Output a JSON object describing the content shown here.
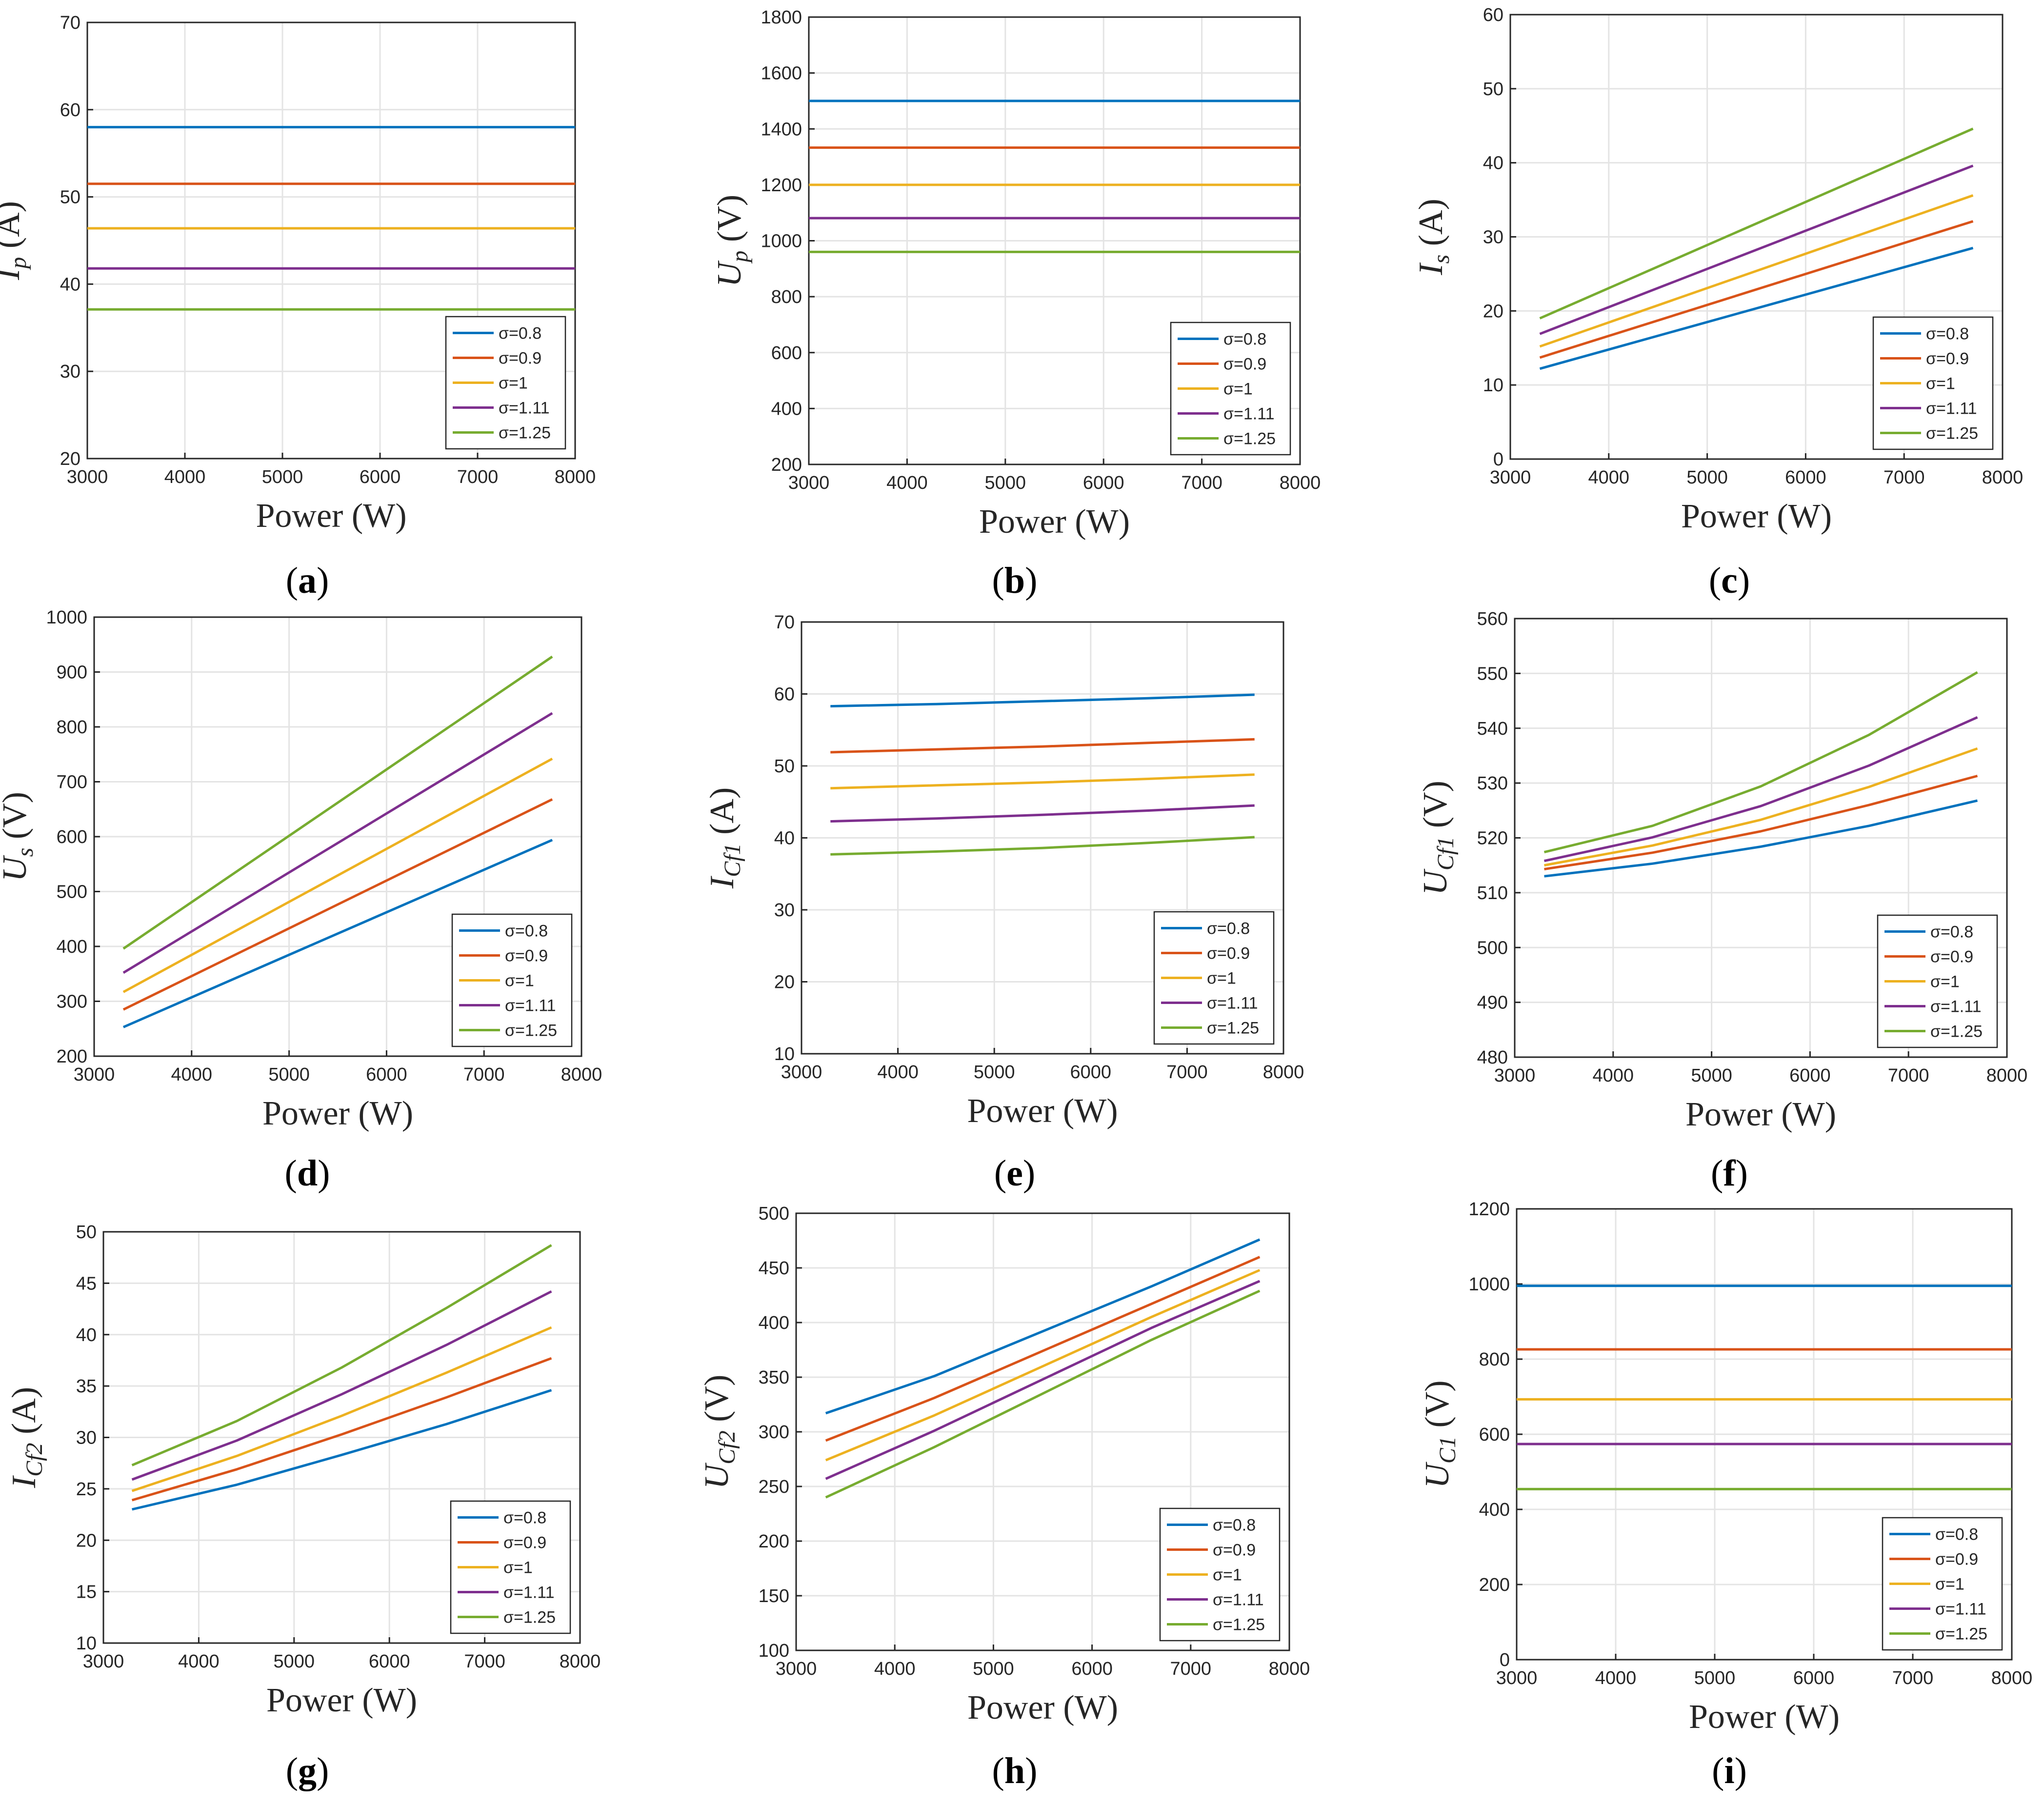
{
  "figure": {
    "legend_labels": [
      "σ=0.8",
      "σ=0.9",
      "σ=1",
      "σ=1.11",
      "σ=1.25"
    ],
    "series_colors": [
      "#0072BD",
      "#D95319",
      "#EDB120",
      "#7E2F8E",
      "#77AC30"
    ]
  },
  "chart_data": [
    {
      "id": "a",
      "type": "line",
      "caption": "a",
      "ylabel_main": "I",
      "ylabel_sub": "p",
      "ylabel_unit": " (A)",
      "xlabel": "Power (W)",
      "xlim": [
        3000,
        8000
      ],
      "ylim": [
        20,
        70
      ],
      "xticks": [
        3000,
        4000,
        5000,
        6000,
        7000,
        8000
      ],
      "yticks": [
        20,
        30,
        40,
        50,
        60,
        70
      ],
      "x": [
        3000,
        8000
      ],
      "series": [
        {
          "name": "σ=0.8",
          "values": [
            58,
            58
          ]
        },
        {
          "name": "σ=0.9",
          "values": [
            51.5,
            51.5
          ]
        },
        {
          "name": "σ=1",
          "values": [
            46.4,
            46.4
          ]
        },
        {
          "name": "σ=1.11",
          "values": [
            41.8,
            41.8
          ]
        },
        {
          "name": "σ=1.25",
          "values": [
            37.1,
            37.1
          ]
        }
      ],
      "legend": "bottom-right",
      "grid": true
    },
    {
      "id": "b",
      "type": "line",
      "caption": "b",
      "ylabel_main": "U",
      "ylabel_sub": "p",
      "ylabel_unit": " (V)",
      "xlabel": "Power (W)",
      "xlim": [
        3000,
        8000
      ],
      "ylim": [
        200,
        1800
      ],
      "xticks": [
        3000,
        4000,
        5000,
        6000,
        7000,
        8000
      ],
      "yticks": [
        200,
        400,
        600,
        800,
        1000,
        1200,
        1400,
        1600,
        1800
      ],
      "x": [
        3000,
        8000
      ],
      "series": [
        {
          "name": "σ=0.8",
          "values": [
            1500,
            1500
          ]
        },
        {
          "name": "σ=0.9",
          "values": [
            1333,
            1333
          ]
        },
        {
          "name": "σ=1",
          "values": [
            1200,
            1200
          ]
        },
        {
          "name": "σ=1.11",
          "values": [
            1081,
            1081
          ]
        },
        {
          "name": "σ=1.25",
          "values": [
            960,
            960
          ]
        }
      ],
      "legend": "bottom-right",
      "grid": true
    },
    {
      "id": "c",
      "type": "line",
      "caption": "c",
      "ylabel_main": "I",
      "ylabel_sub": "s",
      "ylabel_unit": " (A)",
      "xlabel": "Power (W)",
      "xlim": [
        3000,
        8000
      ],
      "ylim": [
        0,
        60
      ],
      "xticks": [
        3000,
        4000,
        5000,
        6000,
        7000,
        8000
      ],
      "yticks": [
        0,
        10,
        20,
        30,
        40,
        50,
        60
      ],
      "x": [
        3300,
        7700
      ],
      "series": [
        {
          "name": "σ=0.8",
          "values": [
            12.2,
            28.5
          ]
        },
        {
          "name": "σ=0.9",
          "values": [
            13.7,
            32.1
          ]
        },
        {
          "name": "σ=1",
          "values": [
            15.2,
            35.6
          ]
        },
        {
          "name": "σ=1.11",
          "values": [
            16.9,
            39.6
          ]
        },
        {
          "name": "σ=1.25",
          "values": [
            19.0,
            44.6
          ]
        }
      ],
      "legend": "bottom-right",
      "grid": true
    },
    {
      "id": "d",
      "type": "line",
      "caption": "d",
      "ylabel_main": "U",
      "ylabel_sub": "s",
      "ylabel_unit": " (V)",
      "xlabel": "Power (W)",
      "xlim": [
        3000,
        8000
      ],
      "ylim": [
        200,
        1000
      ],
      "xticks": [
        3000,
        4000,
        5000,
        6000,
        7000,
        8000
      ],
      "yticks": [
        200,
        300,
        400,
        500,
        600,
        700,
        800,
        900,
        1000
      ],
      "x": [
        3300,
        7700
      ],
      "series": [
        {
          "name": "σ=0.8",
          "values": [
            253,
            594
          ]
        },
        {
          "name": "σ=0.9",
          "values": [
            285,
            668
          ]
        },
        {
          "name": "σ=1",
          "values": [
            317,
            742
          ]
        },
        {
          "name": "σ=1.11",
          "values": [
            352,
            825
          ]
        },
        {
          "name": "σ=1.25",
          "values": [
            396,
            928
          ]
        }
      ],
      "legend": "bottom-right",
      "grid": true
    },
    {
      "id": "e",
      "type": "line",
      "caption": "e",
      "ylabel_main": "I",
      "ylabel_sub": "Cf1",
      "ylabel_unit": " (A)",
      "xlabel": "Power (W)",
      "xlim": [
        3000,
        8000
      ],
      "ylim": [
        10,
        70
      ],
      "xticks": [
        3000,
        4000,
        5000,
        6000,
        7000,
        8000
      ],
      "yticks": [
        10,
        20,
        30,
        40,
        50,
        60,
        70
      ],
      "x": [
        3300,
        4400,
        5500,
        6600,
        7700
      ],
      "series": [
        {
          "name": "σ=0.8",
          "values": [
            58.3,
            58.6,
            59.0,
            59.4,
            59.9
          ]
        },
        {
          "name": "σ=0.9",
          "values": [
            51.9,
            52.3,
            52.7,
            53.2,
            53.7
          ]
        },
        {
          "name": "σ=1",
          "values": [
            46.9,
            47.3,
            47.7,
            48.2,
            48.8
          ]
        },
        {
          "name": "σ=1.11",
          "values": [
            42.3,
            42.7,
            43.2,
            43.8,
            44.5
          ]
        },
        {
          "name": "σ=1.25",
          "values": [
            37.7,
            38.1,
            38.6,
            39.3,
            40.1
          ]
        }
      ],
      "legend": "bottom-right",
      "grid": true
    },
    {
      "id": "f",
      "type": "line",
      "caption": "f",
      "ylabel_main": "U",
      "ylabel_sub": "Cf1",
      "ylabel_unit": " (V)",
      "xlabel": "Power (W)",
      "xlim": [
        3000,
        8000
      ],
      "ylim": [
        480,
        560
      ],
      "xticks": [
        3000,
        4000,
        5000,
        6000,
        7000,
        8000
      ],
      "yticks": [
        480,
        490,
        500,
        510,
        520,
        530,
        540,
        550,
        560
      ],
      "x": [
        3300,
        4400,
        5500,
        6600,
        7700
      ],
      "series": [
        {
          "name": "σ=0.8",
          "values": [
            513.0,
            515.3,
            518.4,
            522.2,
            526.8
          ]
        },
        {
          "name": "σ=0.9",
          "values": [
            514.3,
            517.3,
            521.2,
            526.0,
            531.3
          ]
        },
        {
          "name": "σ=1",
          "values": [
            515.0,
            518.6,
            523.3,
            529.3,
            536.3
          ]
        },
        {
          "name": "σ=1.11",
          "values": [
            515.8,
            520.1,
            525.8,
            533.2,
            542.0
          ]
        },
        {
          "name": "σ=1.25",
          "values": [
            517.4,
            522.2,
            529.4,
            538.8,
            550.2
          ]
        }
      ],
      "legend": "bottom-right",
      "grid": true
    },
    {
      "id": "g",
      "type": "line",
      "caption": "g",
      "ylabel_main": "I",
      "ylabel_sub": "Cf2",
      "ylabel_unit": " (A)",
      "xlabel": "Power (W)",
      "xlim": [
        3000,
        8000
      ],
      "ylim": [
        10,
        50
      ],
      "xticks": [
        3000,
        4000,
        5000,
        6000,
        7000,
        8000
      ],
      "yticks": [
        10,
        15,
        20,
        25,
        30,
        35,
        40,
        45,
        50
      ],
      "x": [
        3300,
        4400,
        5500,
        6600,
        7700
      ],
      "series": [
        {
          "name": "σ=0.8",
          "values": [
            23.0,
            25.4,
            28.3,
            31.3,
            34.6
          ]
        },
        {
          "name": "σ=0.9",
          "values": [
            23.9,
            26.9,
            30.3,
            33.9,
            37.7
          ]
        },
        {
          "name": "σ=1",
          "values": [
            24.8,
            28.2,
            32.1,
            36.3,
            40.7
          ]
        },
        {
          "name": "σ=1.11",
          "values": [
            25.9,
            29.7,
            34.2,
            39.0,
            44.2
          ]
        },
        {
          "name": "σ=1.25",
          "values": [
            27.3,
            31.6,
            36.8,
            42.6,
            48.7
          ]
        }
      ],
      "legend": "bottom-right",
      "grid": true
    },
    {
      "id": "h",
      "type": "line",
      "caption": "h",
      "ylabel_main": "U",
      "ylabel_sub": "Cf2",
      "ylabel_unit": " (V)",
      "xlabel": "Power (W)",
      "xlim": [
        3000,
        8000
      ],
      "ylim": [
        100,
        500
      ],
      "xticks": [
        3000,
        4000,
        5000,
        6000,
        7000,
        8000
      ],
      "yticks": [
        100,
        150,
        200,
        250,
        300,
        350,
        400,
        450,
        500
      ],
      "x": [
        3300,
        4400,
        5500,
        6600,
        7700
      ],
      "series": [
        {
          "name": "σ=0.8",
          "values": [
            317,
            351,
            392,
            433,
            476
          ]
        },
        {
          "name": "σ=0.9",
          "values": [
            292,
            331,
            374,
            417,
            460
          ]
        },
        {
          "name": "σ=1",
          "values": [
            274,
            315,
            360,
            405,
            448
          ]
        },
        {
          "name": "σ=1.11",
          "values": [
            257,
            301,
            348,
            395,
            438
          ]
        },
        {
          "name": "σ=1.25",
          "values": [
            240,
            286,
            335,
            384,
            429
          ]
        }
      ],
      "legend": "bottom-right",
      "grid": true
    },
    {
      "id": "i",
      "type": "line",
      "caption": "i",
      "ylabel_main": "U",
      "ylabel_sub": "C1",
      "ylabel_unit": " (V)",
      "xlabel": "Power (W)",
      "xlim": [
        3000,
        8000
      ],
      "ylim": [
        0,
        1200
      ],
      "xticks": [
        3000,
        4000,
        5000,
        6000,
        7000,
        8000
      ],
      "yticks": [
        0,
        200,
        400,
        600,
        800,
        1000,
        1200
      ],
      "x": [
        3000,
        8000
      ],
      "series": [
        {
          "name": "σ=0.8",
          "values": [
            995,
            995
          ]
        },
        {
          "name": "σ=0.9",
          "values": [
            826,
            826
          ]
        },
        {
          "name": "σ=1",
          "values": [
            693,
            693
          ]
        },
        {
          "name": "σ=1.11",
          "values": [
            574,
            574
          ]
        },
        {
          "name": "σ=1.25",
          "values": [
            454,
            454
          ]
        }
      ],
      "legend": "bottom-right",
      "grid": true
    }
  ]
}
